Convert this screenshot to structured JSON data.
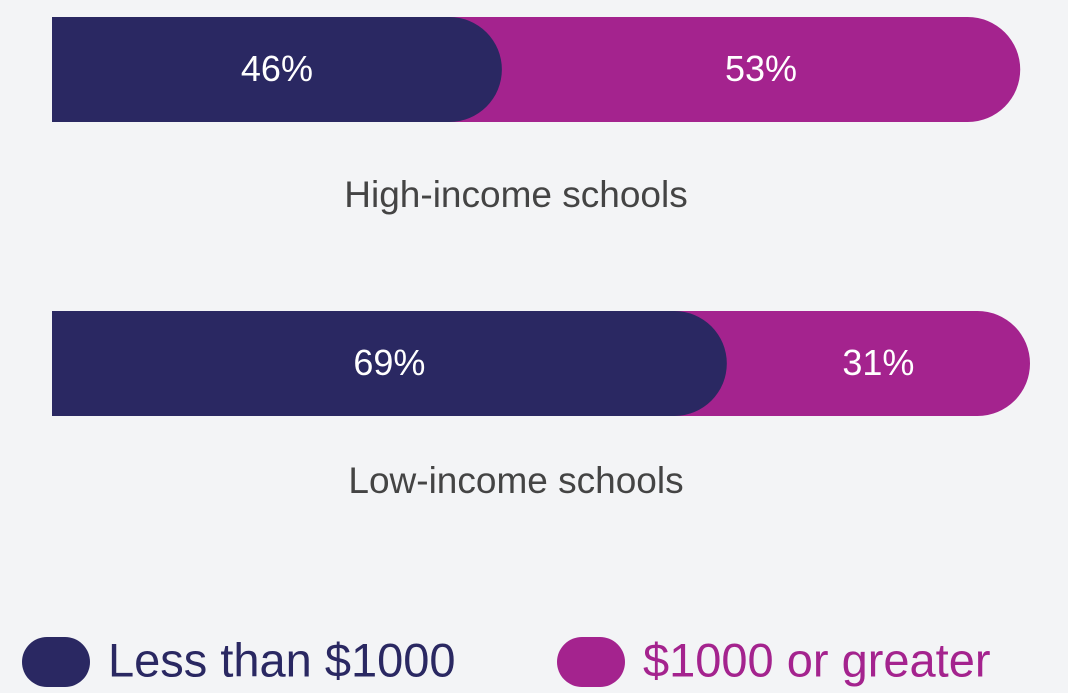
{
  "chart_data": {
    "type": "stacked-bar-horizontal",
    "categories": [
      "High-income schools",
      "Low-income schools"
    ],
    "series": [
      {
        "name": "Less than $1000",
        "color": "#2a2862",
        "values": [
          46,
          69
        ],
        "value_labels": [
          "46%",
          "69%"
        ]
      },
      {
        "name": "$1000 or greater",
        "color": "#a4238e",
        "values": [
          53,
          31
        ],
        "value_labels": [
          "53%",
          "31%"
        ]
      }
    ],
    "xlim": [
      0,
      100
    ],
    "legend": "bottom"
  }
}
